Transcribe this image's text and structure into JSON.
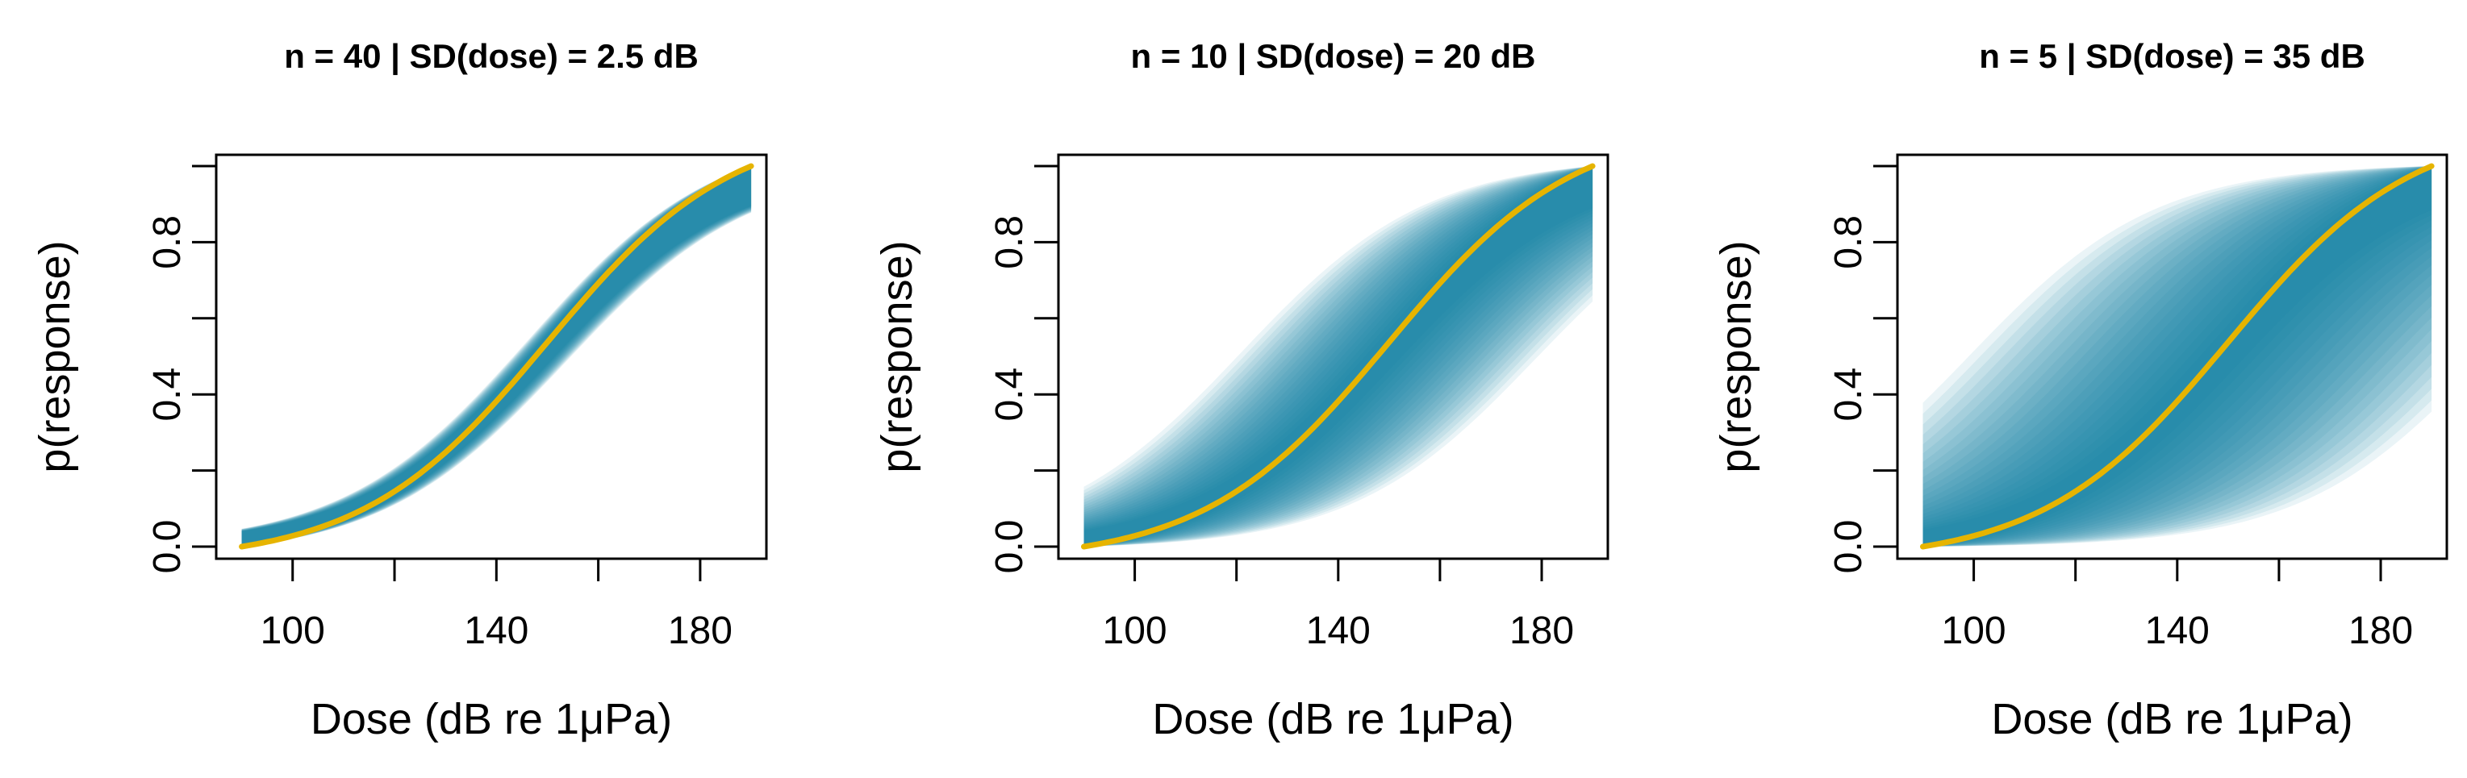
{
  "chart_data": [
    {
      "type": "line",
      "title": "n = 40 | SD(dose) = 2.5 dB",
      "xlabel": "Dose (dB re 1μPa)",
      "ylabel": "p(response)",
      "xlim": [
        85,
        193
      ],
      "ylim": [
        -0.04,
        1.04
      ],
      "x_ticks": [
        "100",
        "140",
        "180"
      ],
      "x_tick_values": [
        100,
        140,
        180
      ],
      "y_ticks": [
        "0.0",
        "0.4",
        "0.8"
      ],
      "y_tick_values": [
        0.0,
        0.4,
        0.8
      ],
      "y_minor_ticks": [
        0.2,
        0.6,
        1.0
      ],
      "x_minor_ticks": [
        120,
        160
      ],
      "grid": false,
      "dose_range": [
        90,
        190
      ],
      "mean_curve": {
        "midpoint": 150,
        "slope": 0.055
      },
      "spread_sd": 2.5,
      "n_curves": 40,
      "line_color": "#e6b400",
      "band_color": "#0b7ba6"
    },
    {
      "type": "line",
      "title": "n = 10 | SD(dose) = 20 dB",
      "xlabel": "Dose (dB re 1μPa)",
      "ylabel": "p(response)",
      "xlim": [
        85,
        193
      ],
      "ylim": [
        -0.04,
        1.04
      ],
      "x_ticks": [
        "100",
        "140",
        "180"
      ],
      "x_tick_values": [
        100,
        140,
        180
      ],
      "y_ticks": [
        "0.0",
        "0.4",
        "0.8"
      ],
      "y_tick_values": [
        0.0,
        0.4,
        0.8
      ],
      "y_minor_ticks": [
        0.2,
        0.6,
        1.0
      ],
      "x_minor_ticks": [
        120,
        160
      ],
      "grid": false,
      "dose_range": [
        90,
        190
      ],
      "mean_curve": {
        "midpoint": 150,
        "slope": 0.055
      },
      "spread_sd": 20,
      "n_curves": 10,
      "line_color": "#e6b400",
      "band_color": "#0b7ba6"
    },
    {
      "type": "line",
      "title": "n = 5 | SD(dose) = 35 dB",
      "xlabel": "Dose (dB re 1μPa)",
      "ylabel": "p(response)",
      "xlim": [
        85,
        193
      ],
      "ylim": [
        -0.04,
        1.04
      ],
      "x_ticks": [
        "100",
        "140",
        "180"
      ],
      "x_tick_values": [
        100,
        140,
        180
      ],
      "y_ticks": [
        "0.0",
        "0.4",
        "0.8"
      ],
      "y_tick_values": [
        0.0,
        0.4,
        0.8
      ],
      "y_minor_ticks": [
        0.2,
        0.6,
        1.0
      ],
      "x_minor_ticks": [
        120,
        160
      ],
      "grid": false,
      "dose_range": [
        90,
        190
      ],
      "mean_curve": {
        "midpoint": 150,
        "slope": 0.055
      },
      "spread_sd": 35,
      "n_curves": 5,
      "line_color": "#e6b400",
      "band_color": "#0b7ba6"
    }
  ]
}
